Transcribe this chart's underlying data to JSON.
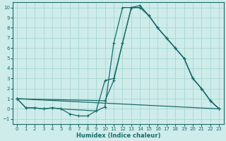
{
  "xlabel": "Humidex (Indice chaleur)",
  "xlim": [
    -0.5,
    23.5
  ],
  "ylim": [
    -1.5,
    10.5
  ],
  "xticks": [
    0,
    1,
    2,
    3,
    4,
    5,
    6,
    7,
    8,
    9,
    10,
    11,
    12,
    13,
    14,
    15,
    16,
    17,
    18,
    19,
    20,
    21,
    22,
    23
  ],
  "yticks": [
    -1,
    0,
    1,
    2,
    3,
    4,
    5,
    6,
    7,
    8,
    9,
    10
  ],
  "bg_color": "#ceecea",
  "grid_color": "#add8d5",
  "line_color": "#1a6b6b",
  "line1_x": [
    0,
    1,
    2,
    3,
    4,
    5,
    6,
    7,
    8,
    9,
    10,
    11,
    12,
    13,
    14,
    15,
    16,
    17,
    18,
    19,
    20,
    21,
    22,
    23
  ],
  "line1_y": [
    1,
    0.1,
    0.1,
    0.0,
    0.1,
    0.0,
    -0.5,
    -0.7,
    -0.7,
    -0.2,
    0.2,
    6.5,
    10,
    10,
    10.2,
    9.2,
    8.0,
    7.0,
    6.0,
    5.0,
    3.0,
    2.0,
    0.8,
    0.0
  ],
  "line2_x": [
    0,
    1,
    2,
    3,
    4,
    5,
    9,
    10,
    11,
    12,
    13,
    14,
    15,
    16,
    17,
    18,
    19,
    20,
    21,
    22,
    23
  ],
  "line2_y": [
    1,
    0.1,
    0.1,
    0.0,
    0.1,
    0.0,
    -0.2,
    2.8,
    3.0,
    6.5,
    10,
    10,
    9.2,
    8.0,
    7.0,
    6.0,
    5.0,
    3.0,
    2.0,
    0.8,
    0.0
  ],
  "line3_x": [
    0,
    23
  ],
  "line3_y": [
    1,
    0.0
  ],
  "line4_x": [
    0,
    10,
    11,
    12,
    13,
    14,
    15,
    16,
    17,
    18,
    19,
    20,
    21,
    22,
    23
  ],
  "line4_y": [
    1,
    0.8,
    2.8,
    6.5,
    10,
    10,
    9.2,
    8.0,
    7.0,
    6.0,
    5.0,
    3.0,
    2.0,
    0.8,
    0.0
  ]
}
